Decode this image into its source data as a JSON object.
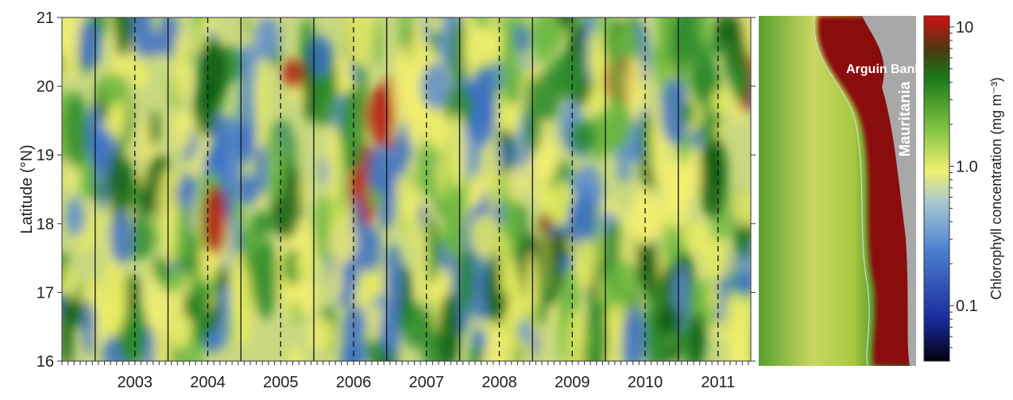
{
  "chart_data": {
    "type": "heatmap",
    "ylabel": "Latitude (°N)",
    "ylim": [
      16,
      21
    ],
    "yticks": [
      16,
      17,
      18,
      19,
      20,
      21
    ],
    "xlim": [
      2002,
      2011.45
    ],
    "xticks": [
      2003,
      2004,
      2005,
      2006,
      2007,
      2008,
      2009,
      2010,
      2011
    ],
    "map_labels": [
      "Arguin Bank",
      "Mauritania"
    ],
    "colorbar": {
      "label": "Chlorophyll concentration (mg m⁻³)",
      "log_scale": true,
      "clim": [
        0.04,
        12
      ],
      "ticks": [
        10,
        {
          "value": 1,
          "label": "1.0"
        },
        0.1
      ]
    }
  }
}
